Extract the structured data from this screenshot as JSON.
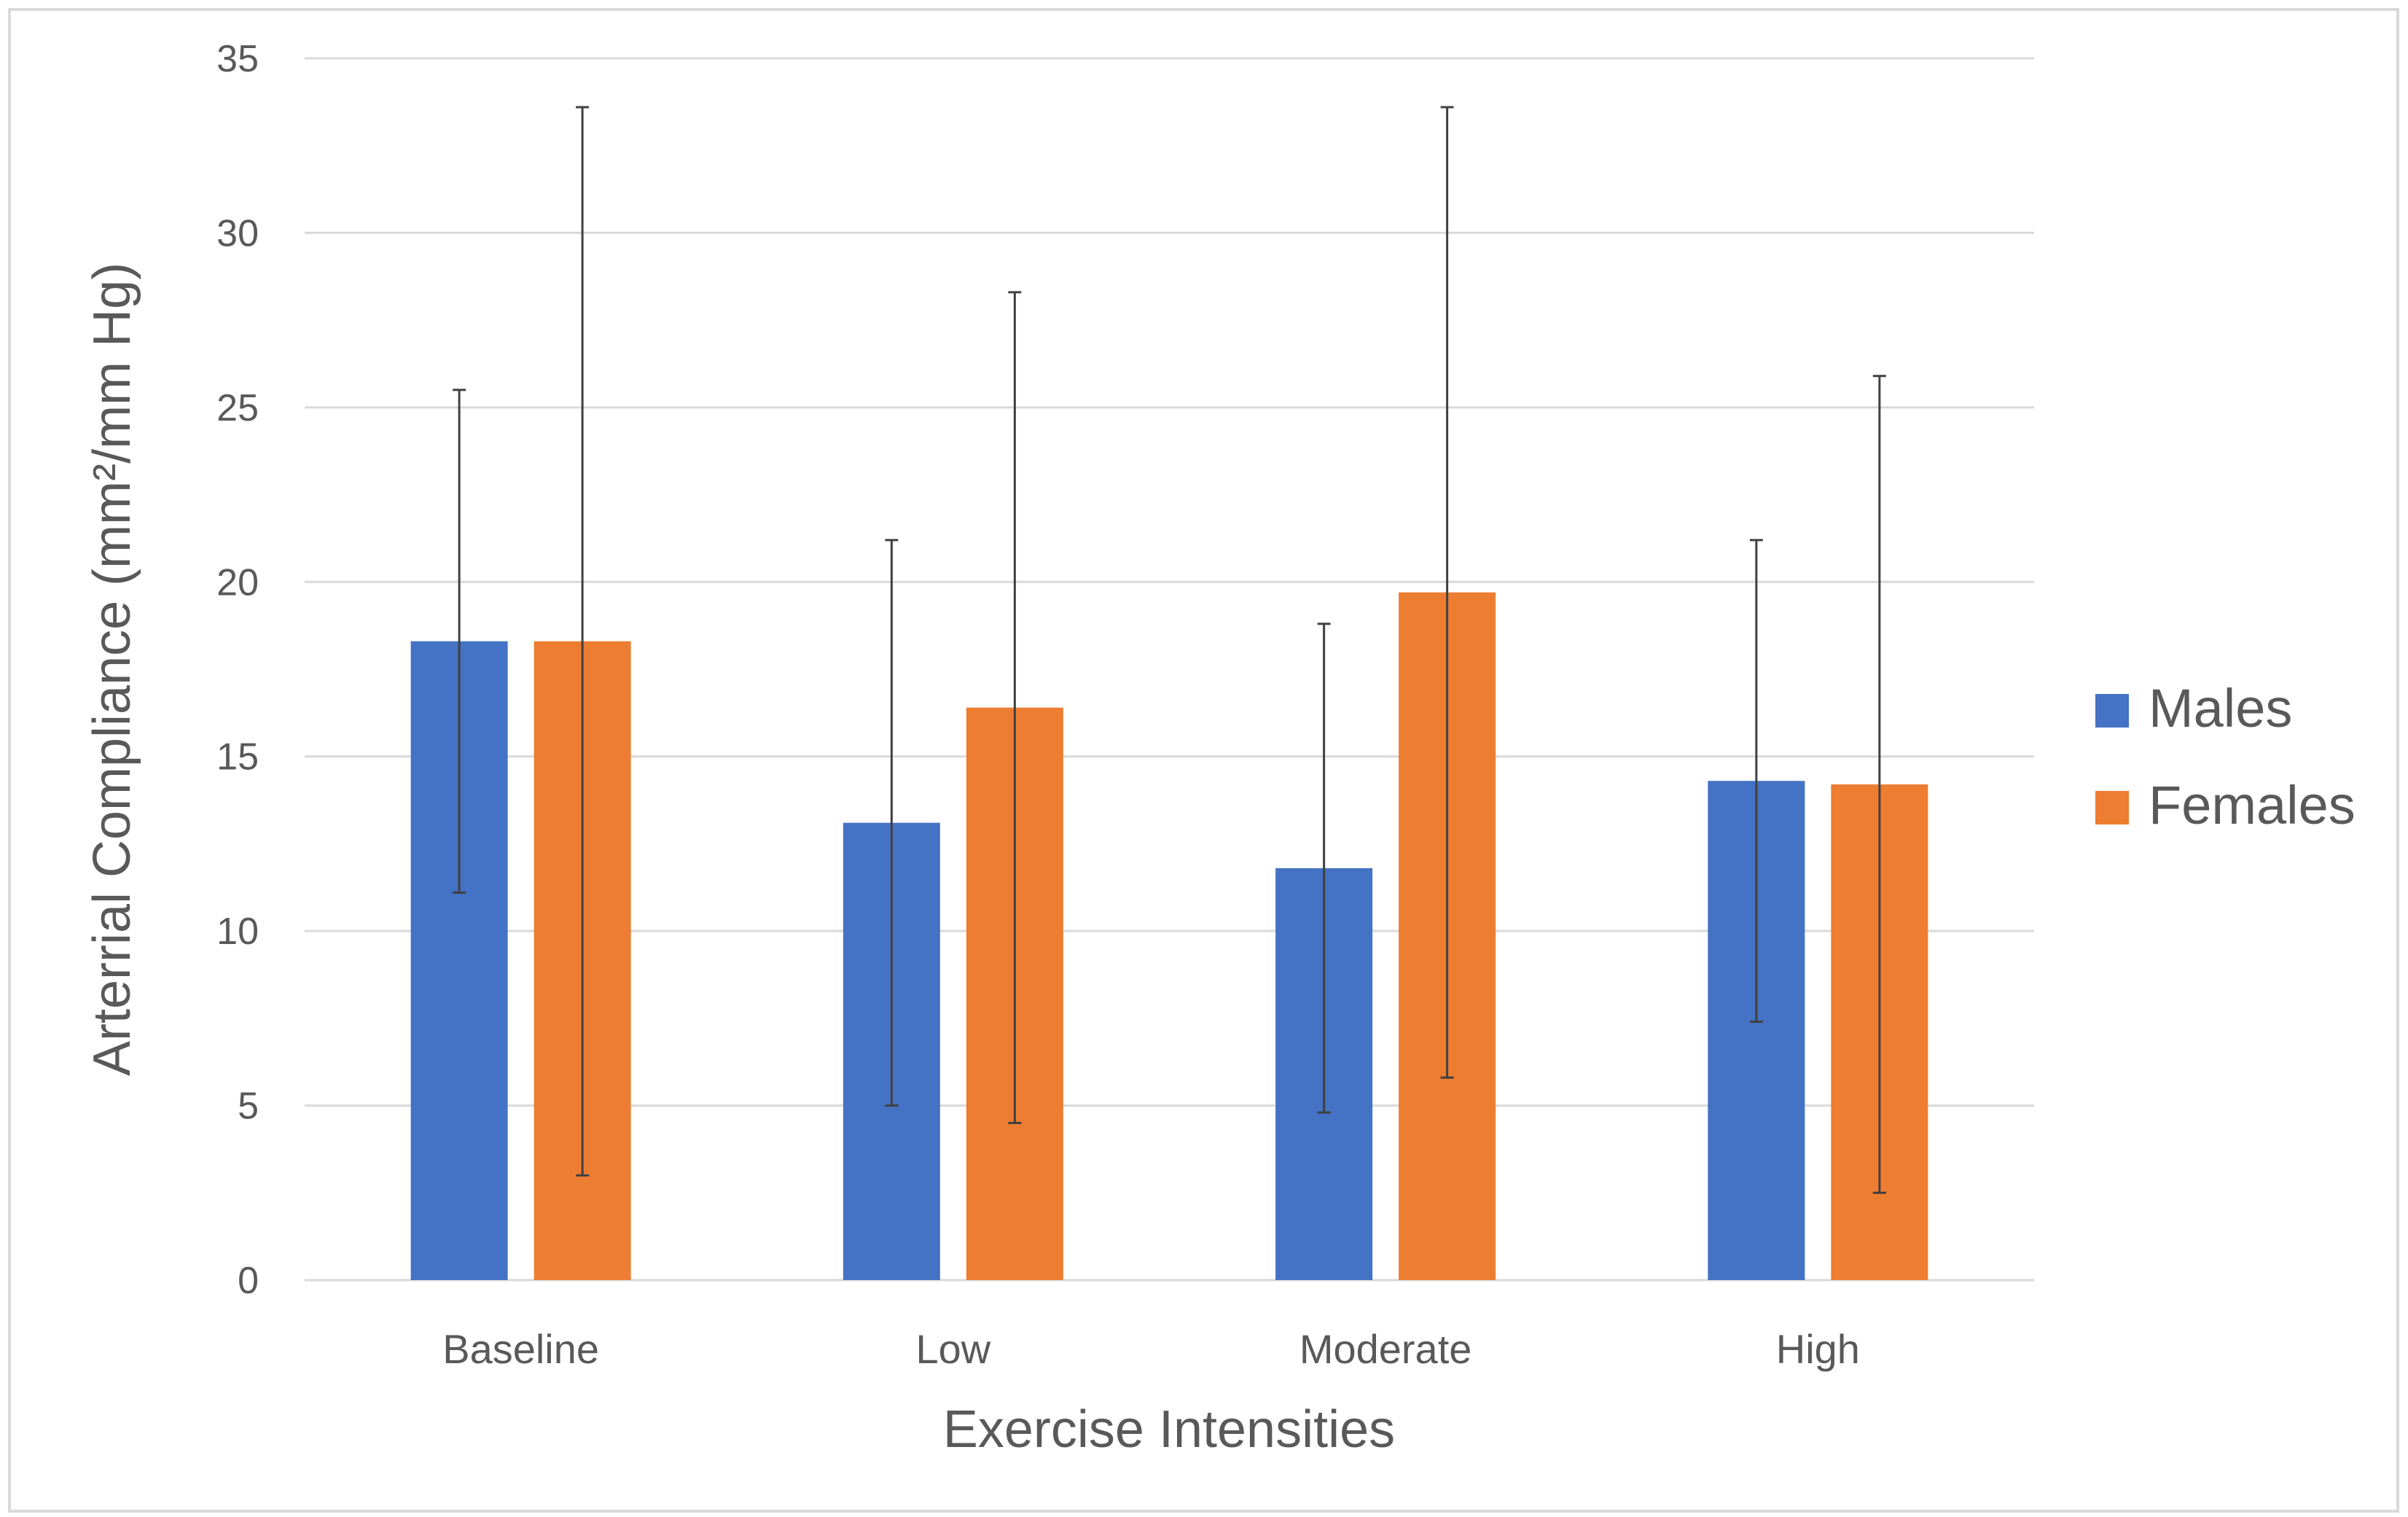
{
  "chart_data": {
    "type": "bar",
    "title": "",
    "xlabel": "Exercise Intensities",
    "ylabel": "Arterrial Compliance (mm²/mm Hg)",
    "ylim": [
      0,
      35
    ],
    "yticks": [
      "0",
      "5",
      "10",
      "15",
      "20",
      "25",
      "30",
      "35"
    ],
    "grid": true,
    "legend_position": "right",
    "categories": [
      "Baseline",
      "Low",
      "Moderate",
      "High"
    ],
    "series": [
      {
        "name": "Males",
        "color": "#4472C4",
        "values": [
          18.3,
          13.1,
          11.8,
          14.3
        ],
        "error": [
          7.2,
          8.1,
          7.0,
          6.9
        ]
      },
      {
        "name": "Females",
        "color": "#ED7D31",
        "values": [
          18.3,
          16.4,
          19.7,
          14.2
        ],
        "error": [
          15.3,
          11.9,
          13.9,
          11.7
        ]
      }
    ]
  }
}
